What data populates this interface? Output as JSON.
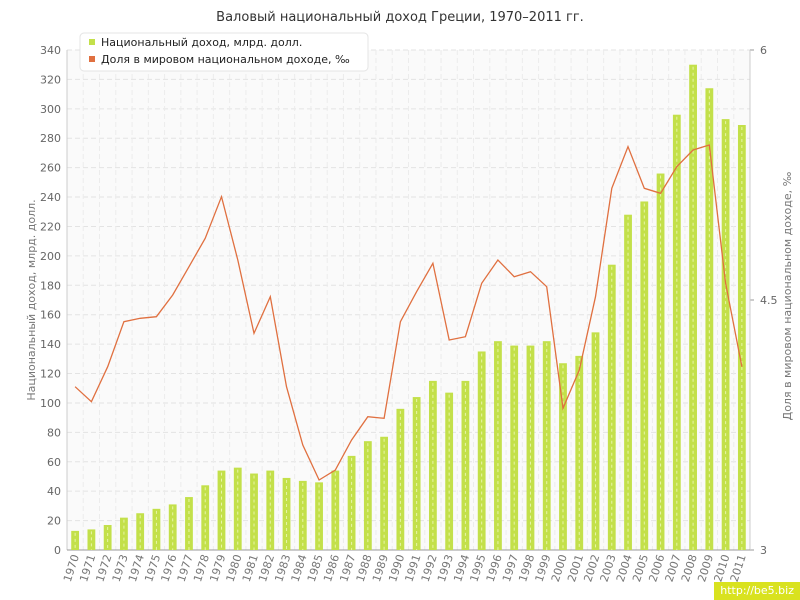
{
  "chart_data": {
    "type": "bar",
    "title": "Валовый национальный доход Греции, 1970–2011 гг.",
    "ylabel": "Национальный доход, млрд. долл.",
    "y2label": "Доля в мировом национальном доходе, ‰",
    "ylim": [
      0,
      340
    ],
    "y2lim": [
      3,
      6
    ],
    "yticks": [
      "0",
      "20",
      "40",
      "60",
      "80",
      "100",
      "120",
      "140",
      "160",
      "180",
      "200",
      "220",
      "240",
      "260",
      "280",
      "300",
      "320",
      "340"
    ],
    "y2ticks": [
      "3",
      "4.5",
      "6"
    ],
    "categories": [
      "1970",
      "1971",
      "1972",
      "1973",
      "1974",
      "1975",
      "1976",
      "1977",
      "1978",
      "1979",
      "1980",
      "1981",
      "1982",
      "1983",
      "1984",
      "1985",
      "1986",
      "1987",
      "1988",
      "1989",
      "1990",
      "1991",
      "1992",
      "1993",
      "1994",
      "1995",
      "1996",
      "1997",
      "1998",
      "1999",
      "2000",
      "2001",
      "2002",
      "2003",
      "2004",
      "2005",
      "2006",
      "2007",
      "2008",
      "2009",
      "2010",
      "2011"
    ],
    "legend_position": "top-left",
    "grid": true,
    "series": [
      {
        "name": "Национальный доход, млрд. долл.",
        "type": "bar",
        "axis": "left",
        "color": "#c3e04a",
        "values": [
          13,
          14,
          17,
          22,
          25,
          28,
          31,
          36,
          44,
          54,
          56,
          52,
          54,
          49,
          47,
          46,
          54,
          64,
          74,
          77,
          96,
          104,
          115,
          107,
          115,
          135,
          142,
          139,
          139,
          142,
          127,
          132,
          148,
          194,
          228,
          237,
          256,
          296,
          330,
          314,
          293,
          289
        ]
      },
      {
        "name": "Доля в мировом национальном доходе, ‰",
        "type": "line",
        "axis": "right",
        "color": "#e07040",
        "values": [
          3.98,
          3.89,
          4.1,
          4.37,
          4.39,
          4.4,
          4.53,
          4.7,
          4.87,
          5.12,
          4.74,
          4.3,
          4.52,
          3.98,
          3.63,
          3.42,
          3.48,
          3.66,
          3.8,
          3.79,
          4.37,
          4.55,
          4.72,
          4.26,
          4.28,
          4.6,
          4.74,
          4.64,
          4.67,
          4.58,
          3.85,
          4.08,
          4.52,
          5.17,
          5.42,
          5.17,
          5.14,
          5.3,
          5.4,
          5.43,
          4.6,
          4.1
        ]
      }
    ]
  },
  "watermark": "http://be5.biz"
}
